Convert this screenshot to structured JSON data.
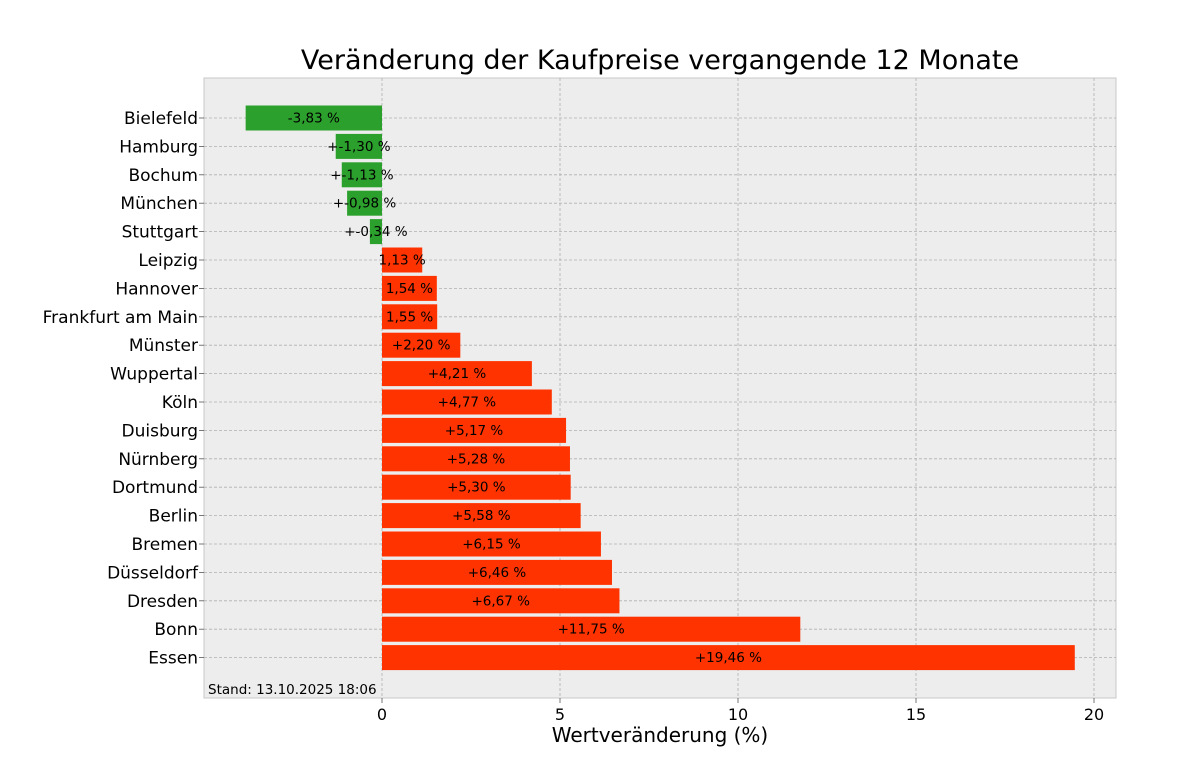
{
  "chart_data": {
    "type": "bar",
    "orientation": "horizontal",
    "title": "Veränderung der Kaufpreise vergangende 12 Monate",
    "xlabel": "Wertveränderung (%)",
    "ylabel": "",
    "xlim": [
      -5,
      20.6
    ],
    "xticks": [
      0,
      5,
      10,
      15,
      20
    ],
    "grid": true,
    "categories": [
      "Bielefeld",
      "Hamburg",
      "Bochum",
      "München",
      "Stuttgart",
      "Leipzig",
      "Hannover",
      "Frankfurt am Main",
      "Münster",
      "Wuppertal",
      "Köln",
      "Duisburg",
      "Nürnberg",
      "Dortmund",
      "Berlin",
      "Bremen",
      "Düsseldorf",
      "Dresden",
      "Bonn",
      "Essen"
    ],
    "values": [
      -3.83,
      -1.3,
      -1.13,
      -0.98,
      -0.34,
      1.13,
      1.54,
      1.55,
      2.2,
      4.21,
      4.77,
      5.17,
      5.28,
      5.3,
      5.58,
      6.15,
      6.46,
      6.67,
      11.75,
      19.46
    ],
    "data_labels": [
      "-3,83 %",
      "+-1,30 %",
      "+-1,13 %",
      "+-0,98 %",
      "+-0,34 %",
      "1,13 %",
      "1,54 %",
      "1,55 %",
      "+2,20 %",
      "+4,21 %",
      "+4,77 %",
      "+5,17 %",
      "+5,28 %",
      "+5,30 %",
      "+5,58 %",
      "+6,15 %",
      "+6,46 %",
      "+6,67 %",
      "+11,75 %",
      "+19,46 %"
    ],
    "colors": {
      "negative": "#2ca02c",
      "positive": "#ff3300",
      "background": "#ededed",
      "grid": "#b0b0b0"
    },
    "annotation": "Stand: 13.10.2025 18:06"
  }
}
